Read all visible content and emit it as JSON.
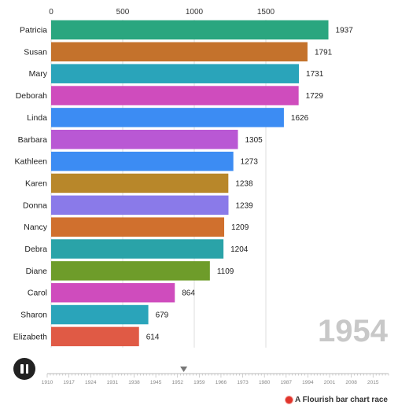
{
  "chart_data": {
    "type": "bar",
    "orientation": "horizontal",
    "title": "",
    "xlabel": "",
    "ylabel": "",
    "xlim": [
      0,
      2000
    ],
    "x_ticks": [
      0,
      500,
      1000,
      1500
    ],
    "x_tick_labels": [
      "0",
      "500",
      "1000",
      "1500"
    ],
    "grid": true,
    "categories": [
      "Patricia",
      "Susan",
      "Mary",
      "Deborah",
      "Linda",
      "Barbara",
      "Kathleen",
      "Karen",
      "Donna",
      "Nancy",
      "Debra",
      "Diane",
      "Carol",
      "Sharon",
      "Elizabeth"
    ],
    "values": [
      1937,
      1791,
      1731,
      1729,
      1626,
      1305,
      1273,
      1238,
      1239,
      1209,
      1204,
      1109,
      864,
      679,
      614
    ],
    "value_labels": [
      "1937",
      "1791",
      "1731",
      "1729",
      "1626",
      "1305",
      "1273",
      "1238",
      "1239",
      "1209",
      "1204",
      "1109",
      "864",
      "679",
      "614"
    ],
    "colors": [
      "#2aa67f",
      "#c4722c",
      "#2aa4ba",
      "#cf4cbd",
      "#3c8cf3",
      "#b958d4",
      "#3c8cf3",
      "#b8872a",
      "#8a7ae9",
      "#d0702e",
      "#2aa3a8",
      "#6e9c2a",
      "#cf4cbd",
      "#2aa4ba",
      "#e05a45"
    ],
    "current_year": "1954"
  },
  "timeline": {
    "labels": [
      "1910",
      "1917",
      "1924",
      "1931",
      "1938",
      "1945",
      "1952",
      "1959",
      "1966",
      "1973",
      "1980",
      "1987",
      "1994",
      "2001",
      "2008",
      "2015"
    ],
    "start_year": 1910,
    "end_year": 2020,
    "current_year": 1954
  },
  "controls": {
    "pause_icon": "pause-icon"
  },
  "credit": {
    "logo_icon": "flourish-logo-icon",
    "text": "A Flourish bar chart race"
  }
}
